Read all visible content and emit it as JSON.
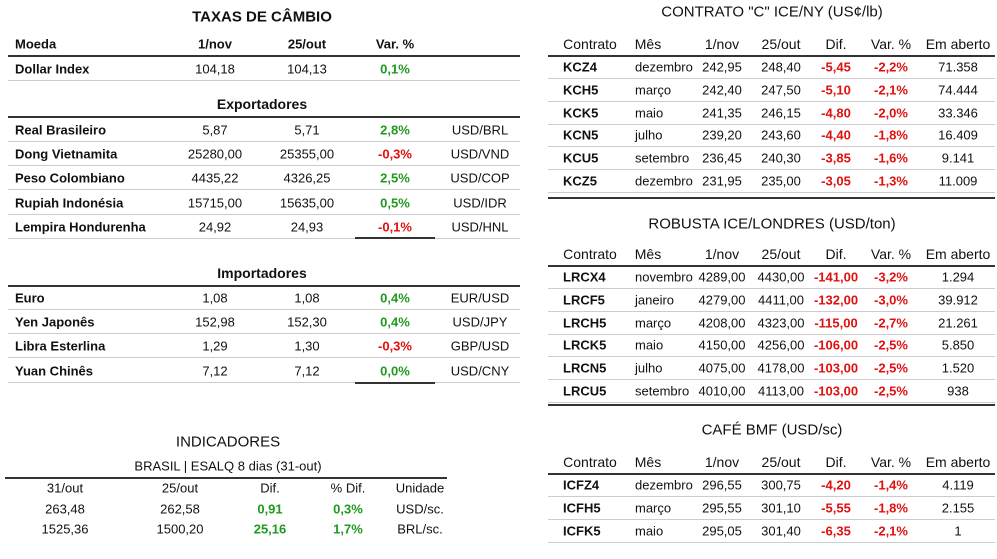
{
  "exchange": {
    "title": "TAXAS DE CÂMBIO",
    "header": [
      "Moeda",
      "1/nov",
      "25/out",
      "Var. %"
    ],
    "dollar_index": {
      "rows": [
        [
          "Dollar Index",
          "104,18",
          "104,13",
          "0,1%"
        ]
      ]
    },
    "exporters": {
      "title": "Exportadores",
      "rows": [
        [
          "Real Brasileiro",
          "5,87",
          "5,71",
          "2,8%",
          "USD/BRL"
        ],
        [
          "Dong Vietnamita",
          "25280,00",
          "25355,00",
          "-0,3%",
          "USD/VND"
        ],
        [
          "Peso Colombiano",
          "4435,22",
          "4326,25",
          "2,5%",
          "USD/COP"
        ],
        [
          "Rupiah Indonésia",
          "15715,00",
          "15635,00",
          "0,5%",
          "USD/IDR"
        ],
        [
          "Lempira Hondurenha",
          "24,92",
          "24,93",
          "-0,1%",
          "USD/HNL"
        ]
      ]
    },
    "importers": {
      "title": "Importadores",
      "rows": [
        [
          "Euro",
          "1,08",
          "1,08",
          "0,4%",
          "EUR/USD"
        ],
        [
          "Yen Japonês",
          "152,98",
          "152,30",
          "0,4%",
          "USD/JPY"
        ],
        [
          "Libra Esterlina",
          "1,29",
          "1,30",
          "-0,3%",
          "GBP/USD"
        ],
        [
          "Yuan Chinês",
          "7,12",
          "7,12",
          "0,0%",
          "USD/CNY"
        ]
      ]
    }
  },
  "indicators": {
    "title": "INDICADORES",
    "subtitle": "BRASIL | ESALQ 8 dias (31-out)",
    "header": [
      "31/out",
      "25/out",
      "Dif.",
      "% Dif.",
      "Unidade"
    ],
    "rows": [
      [
        "263,48",
        "262,58",
        "0,91",
        "0,3%",
        "USD/sc."
      ],
      [
        "1525,36",
        "1500,20",
        "25,16",
        "1,7%",
        "BRL/sc."
      ]
    ]
  },
  "contracts": [
    {
      "title": "CONTRATO \"C\" ICE/NY (US¢/lb)",
      "header": [
        "Contrato",
        "Mês",
        "1/nov",
        "25/out",
        "Dif.",
        "Var. %",
        "Em aberto"
      ],
      "rows": [
        [
          "KCZ4",
          "dezembro",
          "242,95",
          "248,40",
          "-5,45",
          "-2,2%",
          "71.358"
        ],
        [
          "KCH5",
          "março",
          "242,40",
          "247,50",
          "-5,10",
          "-2,1%",
          "74.444"
        ],
        [
          "KCK5",
          "maio",
          "241,35",
          "246,15",
          "-4,80",
          "-2,0%",
          "33.346"
        ],
        [
          "KCN5",
          "julho",
          "239,20",
          "243,60",
          "-4,40",
          "-1,8%",
          "16.409"
        ],
        [
          "KCU5",
          "setembro",
          "236,45",
          "240,30",
          "-3,85",
          "-1,6%",
          "9.141"
        ],
        [
          "KCZ5",
          "dezembro",
          "231,95",
          "235,00",
          "-3,05",
          "-1,3%",
          "11.009"
        ]
      ]
    },
    {
      "title": "ROBUSTA ICE/LONDRES (USD/ton)",
      "header": [
        "Contrato",
        "Mês",
        "1/nov",
        "25/out",
        "Dif.",
        "Var. %",
        "Em aberto"
      ],
      "rows": [
        [
          "LRCX4",
          "novembro",
          "4289,00",
          "4430,00",
          "-141,00",
          "-3,2%",
          "1.294"
        ],
        [
          "LRCF5",
          "janeiro",
          "4279,00",
          "4411,00",
          "-132,00",
          "-3,0%",
          "39.912"
        ],
        [
          "LRCH5",
          "março",
          "4208,00",
          "4323,00",
          "-115,00",
          "-2,7%",
          "21.261"
        ],
        [
          "LRCK5",
          "maio",
          "4150,00",
          "4256,00",
          "-106,00",
          "-2,5%",
          "5.850"
        ],
        [
          "LRCN5",
          "julho",
          "4075,00",
          "4178,00",
          "-103,00",
          "-2,5%",
          "1.520"
        ],
        [
          "LRCU5",
          "setembro",
          "4010,00",
          "4113,00",
          "-103,00",
          "-2,5%",
          "938"
        ]
      ]
    },
    {
      "title": "CAFÉ BMF (USD/sc)",
      "header": [
        "Contrato",
        "Mês",
        "1/nov",
        "25/out",
        "Dif.",
        "Var. %",
        "Em aberto"
      ],
      "rows": [
        [
          "ICFZ4",
          "dezembro",
          "296,55",
          "300,75",
          "-4,20",
          "-1,4%",
          "4.119"
        ],
        [
          "ICFH5",
          "março",
          "295,55",
          "301,10",
          "-5,55",
          "-1,8%",
          "2.155"
        ],
        [
          "ICFK5",
          "maio",
          "295,05",
          "301,40",
          "-6,35",
          "-2,1%",
          "1"
        ]
      ]
    }
  ]
}
